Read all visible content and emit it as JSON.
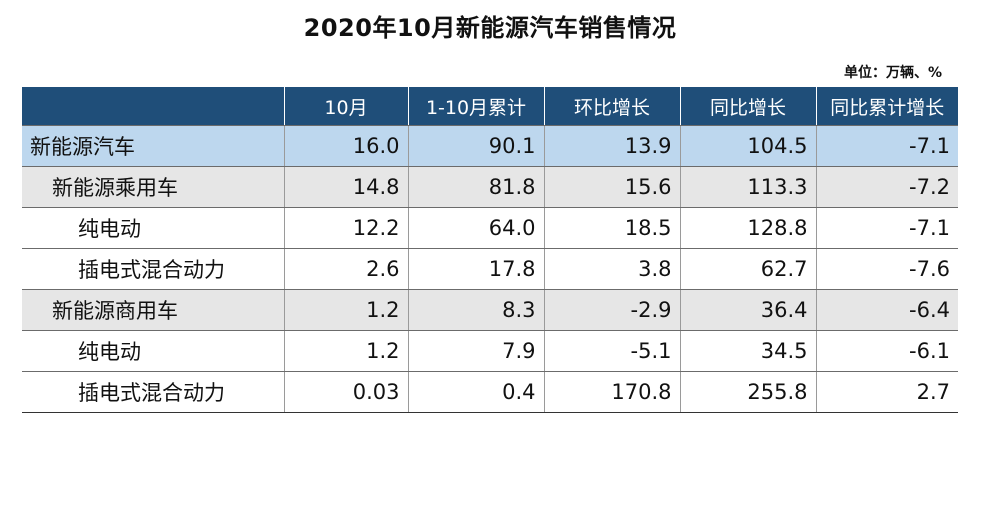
{
  "title": "2020年10月新能源汽车销售情况",
  "unit_note": "单位：万辆、%",
  "table": {
    "headers": [
      "",
      "10月",
      "1-10月累计",
      "环比增长",
      "同比增长",
      "同比累计增长"
    ],
    "rows": [
      {
        "name": "新能源汽车",
        "level": 0,
        "values": [
          "16.0",
          "90.1",
          "13.9",
          "104.5",
          "-7.1"
        ]
      },
      {
        "name": "新能源乘用车",
        "level": 1,
        "values": [
          "14.8",
          "81.8",
          "15.6",
          "113.3",
          "-7.2"
        ]
      },
      {
        "name": "纯电动",
        "level": 2,
        "values": [
          "12.2",
          "64.0",
          "18.5",
          "128.8",
          "-7.1"
        ]
      },
      {
        "name": "插电式混合动力",
        "level": 2,
        "values": [
          "2.6",
          "17.8",
          "3.8",
          "62.7",
          "-7.6"
        ]
      },
      {
        "name": "新能源商用车",
        "level": 1,
        "values": [
          "1.2",
          "8.3",
          "-2.9",
          "36.4",
          "-6.4"
        ]
      },
      {
        "name": "纯电动",
        "level": 2,
        "values": [
          "1.2",
          "7.9",
          "-5.1",
          "34.5",
          "-6.1"
        ]
      },
      {
        "name": "插电式混合动力",
        "level": 2,
        "values": [
          "0.03",
          "0.4",
          "170.8",
          "255.8",
          "2.7"
        ]
      }
    ]
  },
  "colors": {
    "header_bg": "#1f4e79",
    "total_row_bg": "#bdd7ee",
    "subtotal_row_bg": "#e6e6e6"
  }
}
